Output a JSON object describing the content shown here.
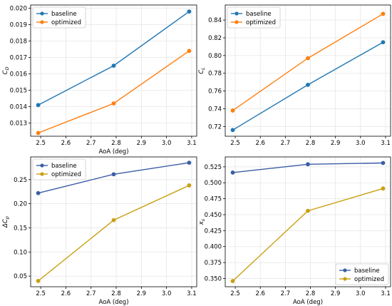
{
  "chart_data": [
    {
      "type": "line",
      "x": [
        2.49,
        2.79,
        3.09
      ],
      "xlabel": "AoA (deg)",
      "ylabel": "C_D",
      "xlim": [
        2.46,
        3.12
      ],
      "ylim": [
        0.0122,
        0.0202
      ],
      "xticks": [
        "2.5",
        "2.6",
        "2.7",
        "2.8",
        "2.9",
        "3.0",
        "3.1"
      ],
      "yticks": [
        "0.013",
        "0.014",
        "0.015",
        "0.016",
        "0.017",
        "0.018",
        "0.019",
        "0.020"
      ],
      "grid": true,
      "legend_position": "top-left",
      "series": [
        {
          "name": "baseline",
          "color": "#1f77b4",
          "values": [
            0.0141,
            0.0165,
            0.0198
          ]
        },
        {
          "name": "optimized",
          "color": "#ff7f0e",
          "values": [
            0.0124,
            0.0142,
            0.0174
          ]
        }
      ]
    },
    {
      "type": "line",
      "x": [
        2.49,
        2.79,
        3.09
      ],
      "xlabel": "",
      "ylabel": "C_L",
      "xlim": [
        2.46,
        3.12
      ],
      "ylim": [
        0.709,
        0.857
      ],
      "xticks": [
        "2.5",
        "2.6",
        "2.7",
        "2.8",
        "2.9",
        "3.0",
        "3.1"
      ],
      "yticks": [
        "0.72",
        "0.74",
        "0.76",
        "0.78",
        "0.80",
        "0.82",
        "0.84"
      ],
      "grid": true,
      "legend_position": "top-left",
      "series": [
        {
          "name": "baseline",
          "color": "#1f77b4",
          "values": [
            0.716,
            0.767,
            0.815
          ]
        },
        {
          "name": "optimized",
          "color": "#ff7f0e",
          "values": [
            0.738,
            0.797,
            0.847
          ]
        }
      ]
    },
    {
      "type": "line",
      "x": [
        2.49,
        2.79,
        3.09
      ],
      "xlabel": "AoA (deg)",
      "ylabel": "ΔC_p",
      "xlim": [
        2.46,
        3.12
      ],
      "ylim": [
        0.028,
        0.297
      ],
      "xticks": [
        "2.5",
        "2.6",
        "2.7",
        "2.8",
        "2.9",
        "3.0",
        "3.1"
      ],
      "yticks": [
        "0.05",
        "0.10",
        "0.15",
        "0.20",
        "0.25"
      ],
      "grid": true,
      "legend_position": "top-left",
      "series": [
        {
          "name": "baseline",
          "color": "#3b5ea6",
          "values": [
            0.222,
            0.261,
            0.285
          ]
        },
        {
          "name": "optimized",
          "color": "#c9a012",
          "values": [
            0.04,
            0.166,
            0.238
          ]
        }
      ]
    },
    {
      "type": "line",
      "x": [
        2.49,
        2.79,
        3.09
      ],
      "xlabel": "AoA (deg)",
      "ylabel": "x_s",
      "xlim": [
        2.46,
        3.12
      ],
      "ylim": [
        0.3371,
        0.5405
      ],
      "xticks": [
        "2.5",
        "2.6",
        "2.7",
        "2.8",
        "2.9",
        "3.0",
        "3.1"
      ],
      "yticks": [
        "0.350",
        "0.375",
        "0.400",
        "0.425",
        "0.450",
        "0.475",
        "0.500",
        "0.525"
      ],
      "grid": true,
      "legend_position": "bottom-right",
      "series": [
        {
          "name": "baseline",
          "color": "#3b5ea6",
          "values": [
            0.516,
            0.529,
            0.531
          ]
        },
        {
          "name": "optimized",
          "color": "#c9a012",
          "values": [
            0.346,
            0.456,
            0.491
          ]
        }
      ]
    }
  ]
}
